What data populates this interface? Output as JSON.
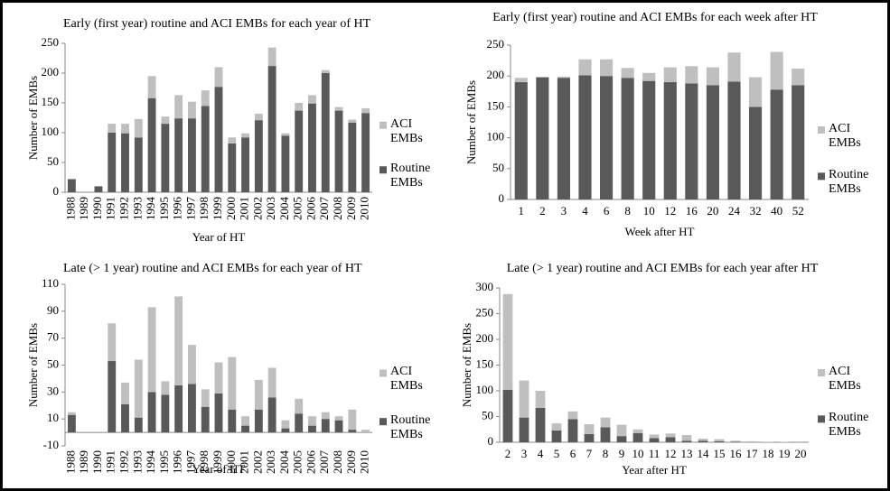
{
  "chart_data": [
    {
      "type": "bar",
      "stacked": true,
      "legend": "right",
      "title": "Early (first year) routine and ACI EMBs for each year of HT",
      "x_label": "Year of HT",
      "y_label": "Number of EMBs",
      "categories": [
        "1988",
        "1989",
        "1990",
        "1991",
        "1992",
        "1993",
        "1994",
        "1995",
        "1996",
        "1997",
        "1998",
        "1999",
        "2000",
        "2001",
        "2002",
        "2003",
        "2004",
        "2005",
        "2006",
        "2007",
        "2008",
        "2009",
        "2010"
      ],
      "series": [
        {
          "name": "Routine EMBs",
          "color": "#595959",
          "values": [
            22,
            0,
            10,
            100,
            99,
            92,
            158,
            115,
            124,
            124,
            145,
            177,
            82,
            92,
            121,
            212,
            95,
            137,
            149,
            200,
            137,
            117,
            133
          ]
        },
        {
          "name": "ACI EMBs",
          "color": "#bfbfbf",
          "values": [
            0,
            0,
            0,
            15,
            16,
            31,
            37,
            12,
            39,
            28,
            26,
            33,
            10,
            7,
            11,
            31,
            4,
            13,
            14,
            5,
            6,
            5,
            8
          ]
        }
      ],
      "ylim": [
        0,
        250
      ],
      "yticks": [
        0,
        50,
        100,
        150,
        200,
        250
      ]
    },
    {
      "type": "bar",
      "stacked": true,
      "legend": "right",
      "title": "Early (first year) routine and ACI EMBs for each week after HT",
      "x_label": "Week after HT",
      "y_label": "Number of EMBs",
      "categories": [
        "1",
        "2",
        "3",
        "4",
        "6",
        "8",
        "10",
        "12",
        "16",
        "20",
        "24",
        "32",
        "40",
        "52"
      ],
      "series": [
        {
          "name": "Routine EMBs",
          "color": "#595959",
          "values": [
            190,
            198,
            197,
            201,
            200,
            197,
            192,
            190,
            188,
            185,
            191,
            150,
            178,
            185
          ]
        },
        {
          "name": "ACI EMBs",
          "color": "#bfbfbf",
          "values": [
            7,
            0,
            2,
            26,
            27,
            16,
            13,
            24,
            28,
            29,
            47,
            48,
            61,
            27
          ]
        }
      ],
      "ylim": [
        0,
        250
      ],
      "yticks": [
        0,
        50,
        100,
        150,
        200,
        250
      ]
    },
    {
      "type": "bar",
      "stacked": true,
      "legend": "right",
      "title": "Late (> 1 year) routine and ACI EMBs for each year of HT",
      "x_label": "Year of HT",
      "y_label": "Number of EMBs",
      "categories": [
        "1988",
        "1989",
        "1990",
        "1991",
        "1992",
        "1993",
        "1994",
        "1995",
        "1996",
        "1997",
        "1998",
        "1999",
        "2000",
        "2001",
        "2002",
        "2003",
        "2004",
        "2005",
        "2006",
        "2007",
        "2008",
        "2009",
        "2010"
      ],
      "series": [
        {
          "name": "Routine EMBs",
          "color": "#595959",
          "values": [
            13,
            0,
            0,
            53,
            21,
            11,
            30,
            28,
            35,
            36,
            19,
            29,
            17,
            5,
            17,
            26,
            3,
            14,
            5,
            10,
            9,
            2,
            0
          ]
        },
        {
          "name": "ACI EMBs",
          "color": "#bfbfbf",
          "values": [
            2,
            0,
            0,
            28,
            16,
            43,
            63,
            10,
            66,
            29,
            13,
            23,
            39,
            7,
            22,
            22,
            6,
            11,
            7,
            5,
            3,
            15,
            2
          ]
        }
      ],
      "ylim": [
        -10,
        110
      ],
      "yticks": [
        -10,
        10,
        30,
        50,
        70,
        90,
        110
      ]
    },
    {
      "type": "bar",
      "stacked": true,
      "legend": "right",
      "title": "Late (> 1 year) routine and ACI EMBs for each year after HT",
      "x_label": "Year after HT",
      "y_label": "Number of EMBs",
      "categories": [
        "2",
        "3",
        "4",
        "5",
        "6",
        "7",
        "8",
        "9",
        "10",
        "11",
        "12",
        "13",
        "14",
        "15",
        "16",
        "17",
        "18",
        "19",
        "20"
      ],
      "series": [
        {
          "name": "Routine EMBs",
          "color": "#595959",
          "values": [
            102,
            48,
            67,
            23,
            45,
            16,
            29,
            12,
            18,
            8,
            10,
            3,
            3,
            2,
            1,
            0,
            0,
            0,
            0
          ]
        },
        {
          "name": "ACI EMBs",
          "color": "#bfbfbf",
          "values": [
            186,
            72,
            33,
            14,
            15,
            19,
            19,
            22,
            7,
            7,
            7,
            11,
            4,
            4,
            2,
            2,
            1,
            1,
            0
          ]
        }
      ],
      "ylim": [
        0,
        300
      ],
      "yticks": [
        0,
        50,
        100,
        150,
        200,
        250,
        300
      ]
    }
  ]
}
